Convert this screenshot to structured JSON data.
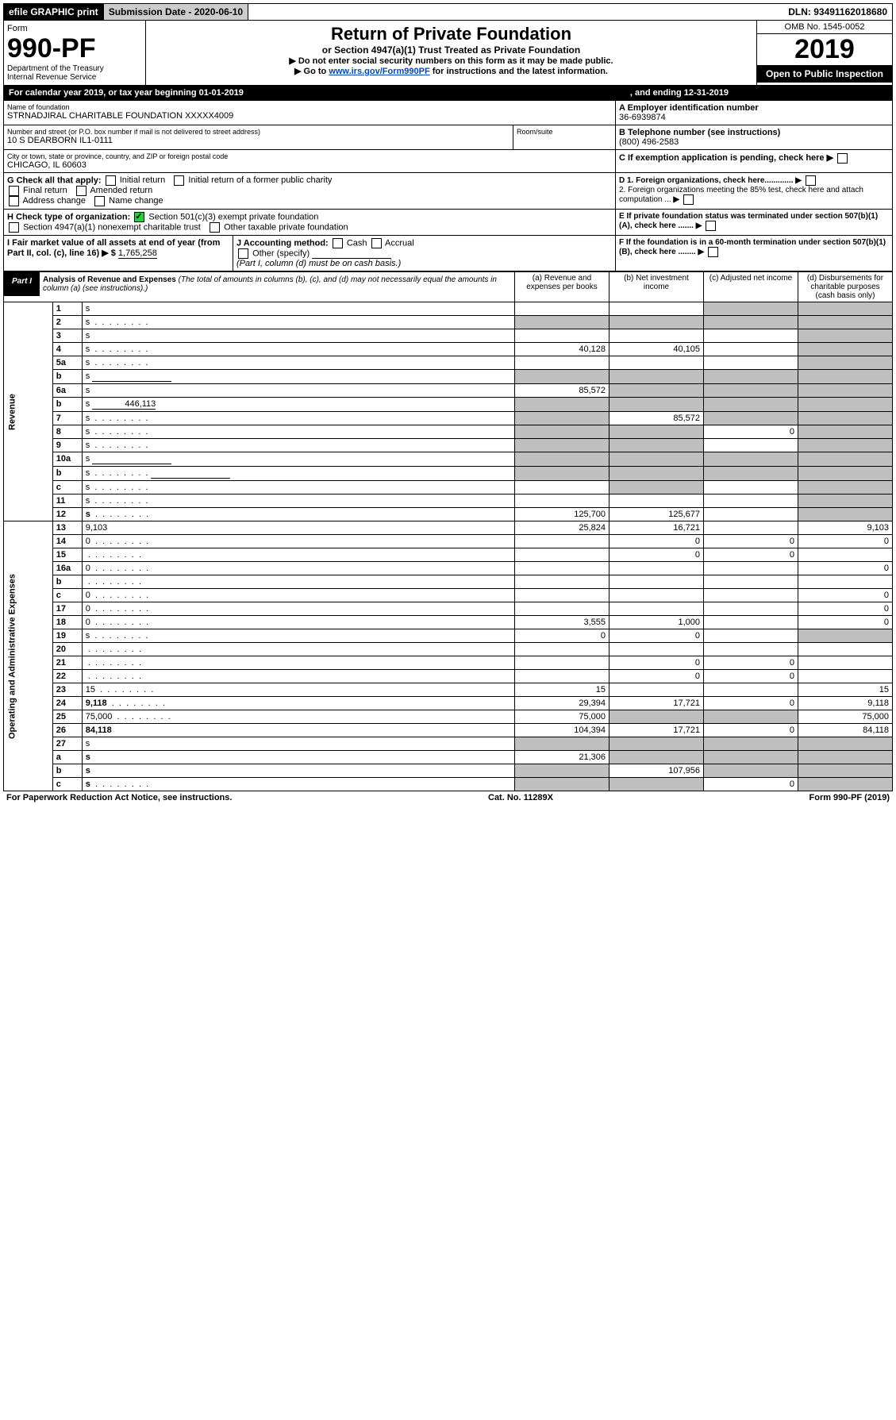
{
  "topbar": {
    "efile": "efile GRAPHIC print",
    "submission": "Submission Date - 2020-06-10",
    "dln": "DLN: 93491162018680"
  },
  "header": {
    "form_word": "Form",
    "form_no": "990-PF",
    "dept": "Department of the Treasury",
    "irs": "Internal Revenue Service",
    "title": "Return of Private Foundation",
    "subtitle": "or Section 4947(a)(1) Trust Treated as Private Foundation",
    "instr1": "▶ Do not enter social security numbers on this form as it may be made public.",
    "instr2_pre": "▶ Go to ",
    "instr2_link": "www.irs.gov/Form990PF",
    "instr2_post": " for instructions and the latest information.",
    "omb": "OMB No. 1545-0052",
    "year": "2019",
    "otp": "Open to Public Inspection"
  },
  "calbar": {
    "text": "For calendar year 2019, or tax year beginning 01-01-2019",
    "ending": ", and ending 12-31-2019"
  },
  "id": {
    "name_label": "Name of foundation",
    "name": "STRNADJIRAL CHARITABLE FOUNDATION XXXXX4009",
    "ein_label": "A Employer identification number",
    "ein": "36-6939874",
    "addr_label": "Number and street (or P.O. box number if mail is not delivered to street address)",
    "room_label": "Room/suite",
    "addr": "10 S DEARBORN IL1-0111",
    "tel_label": "B Telephone number (see instructions)",
    "tel": "(800) 496-2583",
    "city_label": "City or town, state or province, country, and ZIP or foreign postal code",
    "city": "CHICAGO, IL  60603",
    "c_label": "C  If exemption application is pending, check here",
    "g_label": "G Check all that apply:",
    "g_opts": [
      "Initial return",
      "Initial return of a former public charity",
      "Final return",
      "Amended return",
      "Address change",
      "Name change"
    ],
    "d1": "D 1. Foreign organizations, check here.............",
    "d2": "2. Foreign organizations meeting the 85% test, check here and attach computation ...",
    "h_label": "H Check type of organization:",
    "h1": "Section 501(c)(3) exempt private foundation",
    "h2": "Section 4947(a)(1) nonexempt charitable trust",
    "h3": "Other taxable private foundation",
    "e_label": "E  If private foundation status was terminated under section 507(b)(1)(A), check here .......",
    "i_label": "I Fair market value of all assets at end of year (from Part II, col. (c), line 16) ▶ $ ",
    "i_val": "1,765,258",
    "j_label": "J Accounting method:",
    "j_cash": "Cash",
    "j_accr": "Accrual",
    "j_other": "Other (specify)",
    "j_note": "(Part I, column (d) must be on cash basis.)",
    "f_label": "F  If the foundation is in a 60-month termination under section 507(b)(1)(B), check here ........"
  },
  "part1": {
    "label": "Part I",
    "title": "Analysis of Revenue and Expenses",
    "title_note": "(The total of amounts in columns (b), (c), and (d) may not necessarily equal the amounts in column (a) (see instructions).)",
    "cols": {
      "a": "(a)   Revenue and expenses per books",
      "b": "(b)  Net investment income",
      "c": "(c)  Adjusted net income",
      "d": "(d)  Disbursements for charitable purposes (cash basis only)"
    }
  },
  "sections": {
    "rev": "Revenue",
    "exp": "Operating and Administrative Expenses"
  },
  "rows": [
    {
      "n": "1",
      "d": "s",
      "a": "",
      "b": "",
      "c": "s"
    },
    {
      "n": "2",
      "d": "s",
      "dots": true,
      "a": "s",
      "b": "s",
      "c": "s"
    },
    {
      "n": "3",
      "d": "s",
      "a": "",
      "b": "",
      "c": ""
    },
    {
      "n": "4",
      "d": "s",
      "dots": true,
      "a": "40,128",
      "b": "40,105",
      "c": ""
    },
    {
      "n": "5a",
      "d": "s",
      "dots": true,
      "a": "",
      "b": "",
      "c": ""
    },
    {
      "n": "b",
      "d": "s",
      "blank": true,
      "a": "s",
      "b": "s",
      "c": "s"
    },
    {
      "n": "6a",
      "d": "s",
      "a": "85,572",
      "b": "s",
      "c": "s"
    },
    {
      "n": "b",
      "d": "s",
      "inline_val": "446,113",
      "a": "s",
      "b": "s",
      "c": "s"
    },
    {
      "n": "7",
      "d": "s",
      "dots": true,
      "a": "s",
      "b": "85,572",
      "c": "s"
    },
    {
      "n": "8",
      "d": "s",
      "dots": true,
      "a": "s",
      "b": "s",
      "c": "0"
    },
    {
      "n": "9",
      "d": "s",
      "dots": true,
      "a": "s",
      "b": "s",
      "c": ""
    },
    {
      "n": "10a",
      "d": "s",
      "blank": true,
      "a": "s",
      "b": "s",
      "c": "s"
    },
    {
      "n": "b",
      "d": "s",
      "dots": true,
      "blank": true,
      "a": "s",
      "b": "s",
      "c": "s"
    },
    {
      "n": "c",
      "d": "s",
      "dots": true,
      "a": "",
      "b": "s",
      "c": ""
    },
    {
      "n": "11",
      "d": "s",
      "dots": true,
      "a": "",
      "b": "",
      "c": ""
    },
    {
      "n": "12",
      "d": "s",
      "bold": true,
      "dots": true,
      "a": "125,700",
      "b": "125,677",
      "c": ""
    },
    {
      "n": "13",
      "d": "9,103",
      "a": "25,824",
      "b": "16,721",
      "c": ""
    },
    {
      "n": "14",
      "d": "0",
      "dots": true,
      "a": "",
      "b": "0",
      "c": "0"
    },
    {
      "n": "15",
      "d": "",
      "dots": true,
      "a": "",
      "b": "0",
      "c": "0"
    },
    {
      "n": "16a",
      "d": "0",
      "dots": true,
      "a": "",
      "b": "",
      "c": ""
    },
    {
      "n": "b",
      "d": "",
      "dots": true,
      "a": "",
      "b": "",
      "c": ""
    },
    {
      "n": "c",
      "d": "0",
      "dots": true,
      "a": "",
      "b": "",
      "c": ""
    },
    {
      "n": "17",
      "d": "0",
      "dots": true,
      "a": "",
      "b": "",
      "c": ""
    },
    {
      "n": "18",
      "d": "0",
      "dots": true,
      "a": "3,555",
      "b": "1,000",
      "c": ""
    },
    {
      "n": "19",
      "d": "s",
      "dots": true,
      "a": "0",
      "b": "0",
      "c": ""
    },
    {
      "n": "20",
      "d": "",
      "dots": true,
      "a": "",
      "b": "",
      "c": ""
    },
    {
      "n": "21",
      "d": "",
      "dots": true,
      "a": "",
      "b": "0",
      "c": "0"
    },
    {
      "n": "22",
      "d": "",
      "dots": true,
      "a": "",
      "b": "0",
      "c": "0"
    },
    {
      "n": "23",
      "d": "15",
      "dots": true,
      "a": "15",
      "b": "",
      "c": ""
    },
    {
      "n": "24",
      "d": "9,118",
      "bold": true,
      "dots": true,
      "a": "29,394",
      "b": "17,721",
      "c": "0"
    },
    {
      "n": "25",
      "d": "75,000",
      "dots": true,
      "a": "75,000",
      "b": "s",
      "c": "s"
    },
    {
      "n": "26",
      "d": "84,118",
      "bold": true,
      "a": "104,394",
      "b": "17,721",
      "c": "0"
    },
    {
      "n": "27",
      "d": "s",
      "a": "s",
      "b": "s",
      "c": "s"
    },
    {
      "n": "a",
      "d": "s",
      "bold": true,
      "a": "21,306",
      "b": "s",
      "c": "s"
    },
    {
      "n": "b",
      "d": "s",
      "bold": true,
      "a": "s",
      "b": "107,956",
      "c": "s"
    },
    {
      "n": "c",
      "d": "s",
      "bold": true,
      "dots": true,
      "a": "s",
      "b": "s",
      "c": "0"
    }
  ],
  "footer": {
    "left": "For Paperwork Reduction Act Notice, see instructions.",
    "mid": "Cat. No. 11289X",
    "right": "Form 990-PF (2019)"
  }
}
